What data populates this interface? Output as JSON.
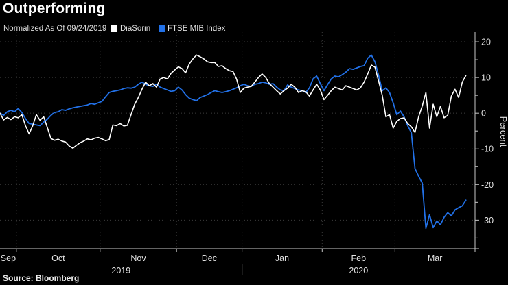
{
  "header": {
    "title": "Outperforming",
    "legend_note": "Normalized As Of 09/24/2019",
    "legend": [
      {
        "label": "DiaSorin",
        "color": "#ffffff"
      },
      {
        "label": "FTSE MIB Index",
        "color": "#2271e8"
      }
    ]
  },
  "footer": {
    "source": "Source: Bloomberg"
  },
  "colors": {
    "background": "#000000",
    "grid": "#3c3c3c",
    "axis": "#c8c8c8",
    "tick_text": "#e2e2e2",
    "title_text": "#ffffff"
  },
  "chart_data": {
    "type": "line",
    "title": "Outperforming",
    "subtitle": "Normalized As Of 09/24/2019",
    "ylabel": "Percent",
    "xlabel": "",
    "grid": "dotted",
    "legend_position": "top",
    "x_range": [
      "2019-09-24",
      "2020-03-27"
    ],
    "ylim": [
      -38,
      22.7
    ],
    "yticks_major": [
      20,
      10,
      0,
      -10,
      -20,
      -30
    ],
    "yticks_minor": [
      15,
      5,
      -5,
      -15,
      -25,
      -35
    ],
    "x_year_labels": [
      "2019",
      "2020"
    ],
    "months": [
      {
        "label": "Sep",
        "year": "2019",
        "days": [
          24,
          25,
          26,
          27,
          30
        ]
      },
      {
        "label": "Oct",
        "year": "2019",
        "days": [
          1,
          2,
          3,
          4,
          7,
          8,
          9,
          10,
          11,
          14,
          15,
          16,
          17,
          18,
          21,
          22,
          23,
          24,
          25,
          28,
          29,
          30,
          31
        ]
      },
      {
        "label": "Nov",
        "year": "2019",
        "days": [
          1,
          4,
          5,
          6,
          7,
          8,
          11,
          12,
          13,
          14,
          15,
          18,
          19,
          20,
          21,
          22,
          25,
          26,
          27,
          28,
          29
        ]
      },
      {
        "label": "Dec",
        "year": "2019",
        "days": [
          2,
          3,
          4,
          5,
          6,
          9,
          10,
          11,
          12,
          13,
          16,
          17,
          18,
          19,
          20,
          23,
          27,
          30
        ]
      },
      {
        "label": "Jan",
        "year": "2020",
        "days": [
          2,
          3,
          6,
          7,
          8,
          9,
          10,
          13,
          14,
          15,
          16,
          17,
          20,
          21,
          22,
          23,
          24,
          27,
          28,
          29,
          30,
          31
        ]
      },
      {
        "label": "Feb",
        "year": "2020",
        "days": [
          3,
          4,
          5,
          6,
          7,
          10,
          11,
          12,
          13,
          14,
          17,
          18,
          19,
          20,
          21,
          24,
          25,
          26,
          27,
          28
        ]
      },
      {
        "label": "Mar",
        "year": "2020",
        "days": [
          2,
          3,
          4,
          5,
          6,
          9,
          10,
          11,
          12,
          13,
          16,
          17,
          18,
          19,
          20,
          23,
          24,
          25,
          26,
          27
        ]
      }
    ],
    "series": [
      {
        "name": "DiaSorin",
        "color": "#ffffff",
        "width": 1.6,
        "values": [
          0.0,
          -1.9,
          -1.2,
          -1.8,
          -1.0,
          -1.3,
          -0.4,
          -3.5,
          -5.8,
          -3.5,
          -0.4,
          -2.0,
          -1.0,
          -4.0,
          -7.1,
          -7.6,
          -7.3,
          -7.8,
          -8.1,
          -9.2,
          -9.8,
          -9.0,
          -8.3,
          -7.8,
          -7.2,
          -7.5,
          -7.0,
          -6.8,
          -7.2,
          -7.7,
          -7.4,
          -3.3,
          -3.5,
          -2.9,
          -3.6,
          -3.4,
          -0.4,
          2.5,
          4.4,
          6.7,
          8.7,
          7.7,
          8.3,
          7.3,
          9.6,
          10.0,
          9.6,
          11.2,
          12.1,
          13.0,
          12.5,
          11.3,
          13.8,
          15.2,
          16.3,
          15.8,
          15.2,
          14.4,
          14.2,
          14.2,
          13.1,
          13.3,
          12.5,
          11.9,
          11.7,
          9.5,
          5.8,
          7.0,
          7.3,
          7.5,
          8.7,
          10.0,
          11.0,
          10.0,
          8.3,
          7.3,
          6.3,
          5.4,
          6.3,
          7.0,
          8.1,
          7.3,
          5.8,
          6.3,
          6.0,
          4.8,
          6.5,
          8.1,
          6.5,
          3.8,
          5.0,
          6.3,
          7.3,
          6.9,
          6.5,
          7.7,
          7.3,
          6.9,
          6.5,
          7.1,
          8.7,
          11.0,
          13.5,
          12.9,
          9.0,
          5.0,
          -1.0,
          -0.4,
          -4.2,
          -2.3,
          -1.5,
          -1.3,
          -2.9,
          -3.8,
          -5.4,
          -1.0,
          2.0,
          5.8,
          -4.2,
          2.5,
          -1.0,
          1.9,
          -1.3,
          -0.6,
          4.8,
          6.7,
          4.4,
          8.7,
          10.6
        ]
      },
      {
        "name": "FTSE MIB Index",
        "color": "#2271e8",
        "width": 1.8,
        "values": [
          0.0,
          -0.6,
          0.4,
          0.8,
          0.4,
          1.3,
          0.2,
          -1.5,
          -2.9,
          -3.1,
          -3.3,
          -3.5,
          -2.5,
          -1.7,
          -0.6,
          0.2,
          0.4,
          1.0,
          0.8,
          1.2,
          1.5,
          1.7,
          1.9,
          2.1,
          2.3,
          2.7,
          2.5,
          2.9,
          3.3,
          4.6,
          5.8,
          6.1,
          6.3,
          6.5,
          6.9,
          7.1,
          7.0,
          7.3,
          8.1,
          8.7,
          8.1,
          7.7,
          7.5,
          8.1,
          7.3,
          6.9,
          6.5,
          6.1,
          6.3,
          7.3,
          6.5,
          5.2,
          4.2,
          3.8,
          3.5,
          4.4,
          4.8,
          5.2,
          5.8,
          6.3,
          6.0,
          5.8,
          6.0,
          6.3,
          6.7,
          7.1,
          7.7,
          8.1,
          7.7,
          7.5,
          8.1,
          8.3,
          8.7,
          8.5,
          8.1,
          8.3,
          7.3,
          6.5,
          6.3,
          7.9,
          7.3,
          6.9,
          6.5,
          6.3,
          5.8,
          7.1,
          9.6,
          10.4,
          8.3,
          6.3,
          8.0,
          9.6,
          10.4,
          10.2,
          10.8,
          11.5,
          12.5,
          12.3,
          12.7,
          13.1,
          13.3,
          15.4,
          16.3,
          14.4,
          10.6,
          6.3,
          7.1,
          5.8,
          2.9,
          -0.4,
          0.6,
          -1.0,
          -3.5,
          -5.5,
          -15.5,
          -17.7,
          -19.6,
          -32.3,
          -28.5,
          -32.1,
          -30.2,
          -31.3,
          -29.2,
          -27.9,
          -28.8,
          -27.1,
          -26.5,
          -26.0,
          -24.4
        ]
      }
    ]
  }
}
